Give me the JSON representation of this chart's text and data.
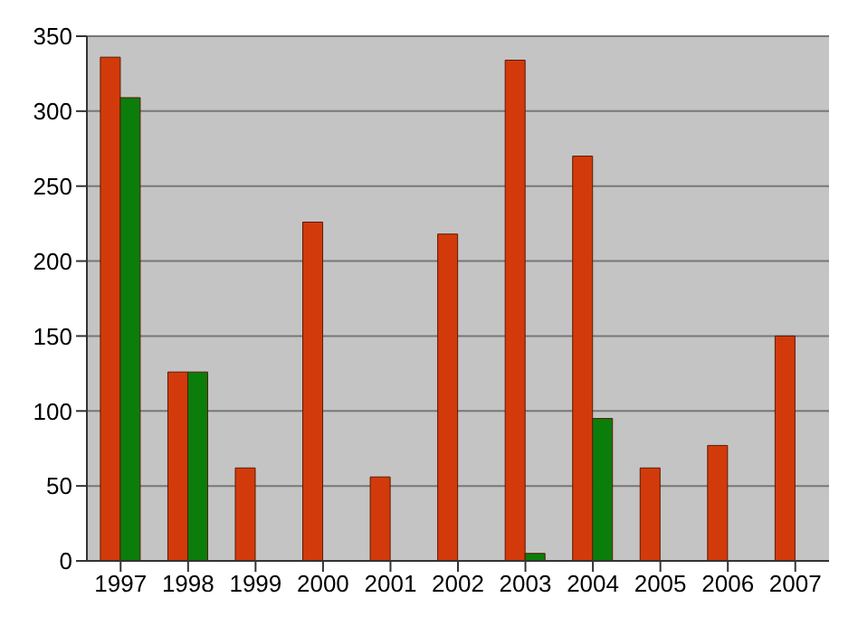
{
  "chart_data": {
    "type": "bar",
    "categories": [
      "1997",
      "1998",
      "1999",
      "2000",
      "2001",
      "2002",
      "2003",
      "2004",
      "2005",
      "2006",
      "2007"
    ],
    "series": [
      {
        "color": "#d33a0b",
        "values": [
          336,
          126,
          62,
          226,
          56,
          218,
          334,
          270,
          62,
          77,
          150
        ]
      },
      {
        "color": "#0b7d0b",
        "values": [
          309,
          126,
          0,
          0,
          0,
          0,
          5,
          95,
          0,
          0,
          0
        ]
      }
    ],
    "ylim": [
      0,
      350
    ],
    "yticks": [
      0,
      50,
      100,
      150,
      200,
      250,
      300,
      350
    ],
    "grid": "y",
    "legend": false
  }
}
